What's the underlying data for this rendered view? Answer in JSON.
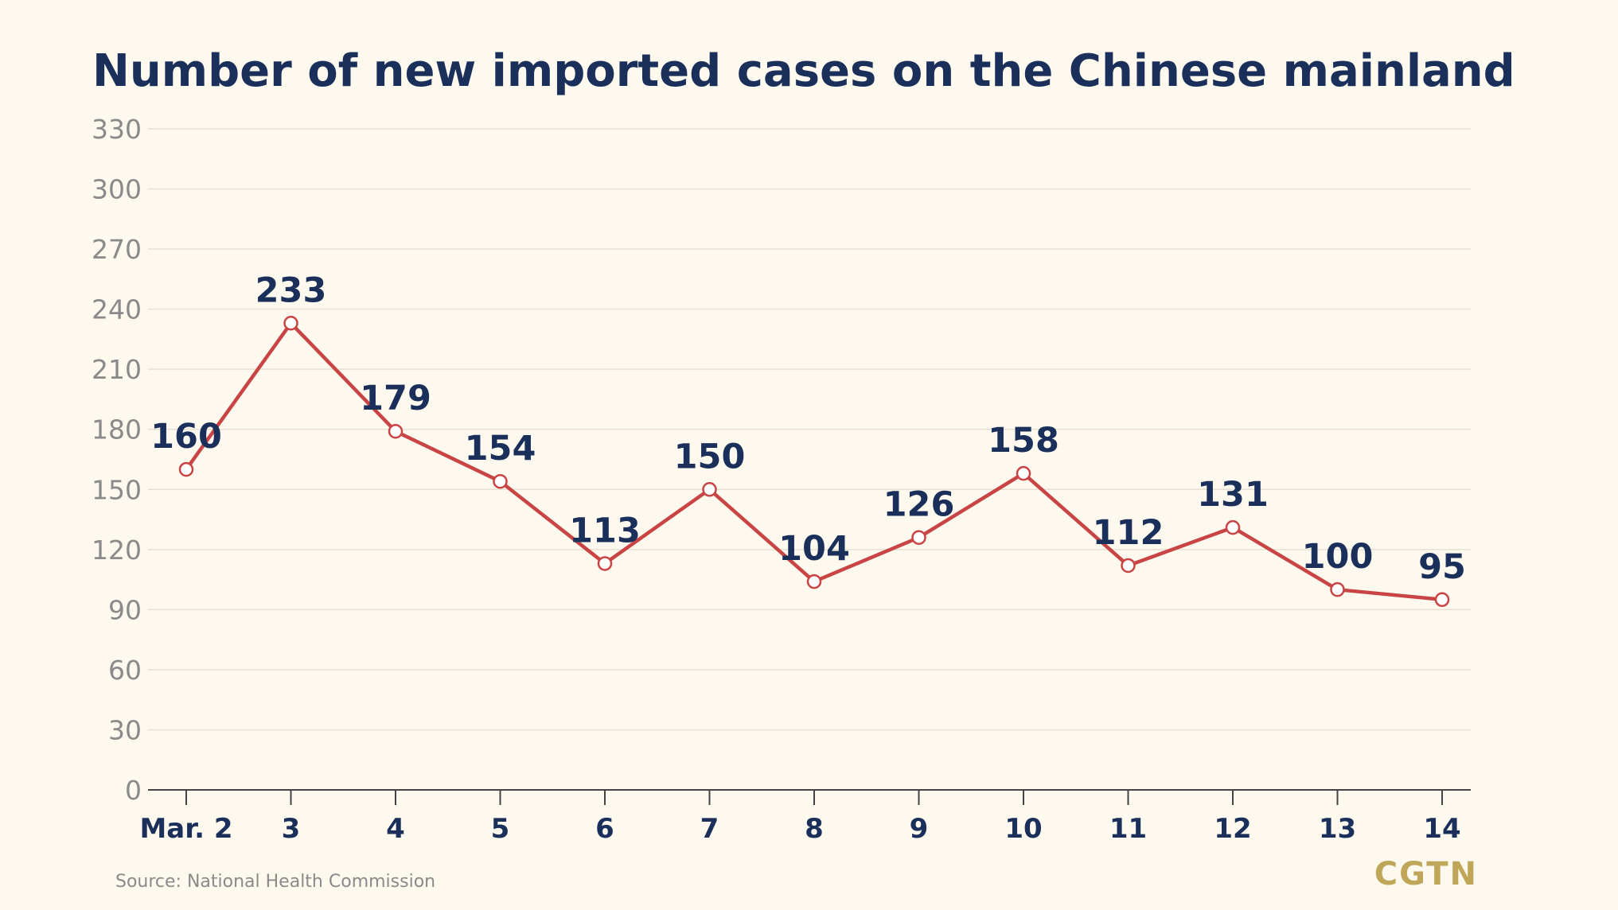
{
  "chart_data": {
    "type": "line",
    "title": "Number of new imported cases on the Chinese mainland",
    "xlabel": "",
    "ylabel": "",
    "categories": [
      "Mar. 2",
      "3",
      "4",
      "5",
      "6",
      "7",
      "8",
      "9",
      "10",
      "11",
      "12",
      "13",
      "14"
    ],
    "series": [
      {
        "values": [
          160,
          233,
          179,
          154,
          113,
          150,
          104,
          126,
          158,
          112,
          131,
          100,
          95
        ]
      }
    ],
    "yticks": [
      "0",
      "30",
      "60",
      "90",
      "120",
      "150",
      "180",
      "210",
      "240",
      "270",
      "300",
      "330"
    ],
    "ylim": [
      0,
      330
    ],
    "grid": true,
    "legend": "none",
    "line_color": "#c94444",
    "text_color": "#1b2f5b"
  },
  "source": "Source: National Health Commission",
  "logo": "CGTN"
}
